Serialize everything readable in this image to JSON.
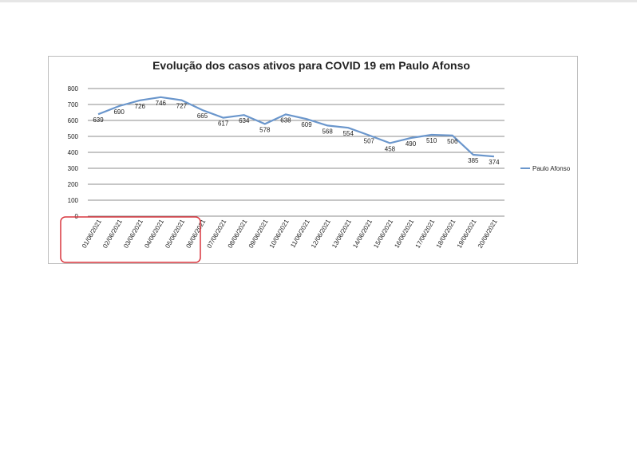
{
  "chart_data": {
    "type": "line",
    "title": "Evolução dos casos ativos para COVID 19 em Paulo Afonso",
    "categories": [
      "01/06/2021",
      "02/06/2021",
      "03/06/2021",
      "04/06/2021",
      "05/06/2021",
      "06/06/2021",
      "07/06/2021",
      "08/06/2021",
      "09/06/2021",
      "10/06/2021",
      "11/06/2021",
      "12/06/2021",
      "13/06/2021",
      "14/06/2021",
      "15/06/2021",
      "16/06/2021",
      "17/06/2021",
      "18/06/2021",
      "19/06/2021",
      "20/06/2021"
    ],
    "series": [
      {
        "name": "Paulo Afonso",
        "color": "#6a96cc",
        "values": [
          639,
          690,
          726,
          746,
          727,
          665,
          617,
          634,
          578,
          638,
          609,
          568,
          554,
          507,
          458,
          490,
          510,
          506,
          385,
          374
        ]
      }
    ],
    "ylim": [
      0,
      800
    ],
    "yticks": [
      0,
      100,
      200,
      300,
      400,
      500,
      600,
      700,
      800
    ],
    "grid": true,
    "legend": "right"
  }
}
